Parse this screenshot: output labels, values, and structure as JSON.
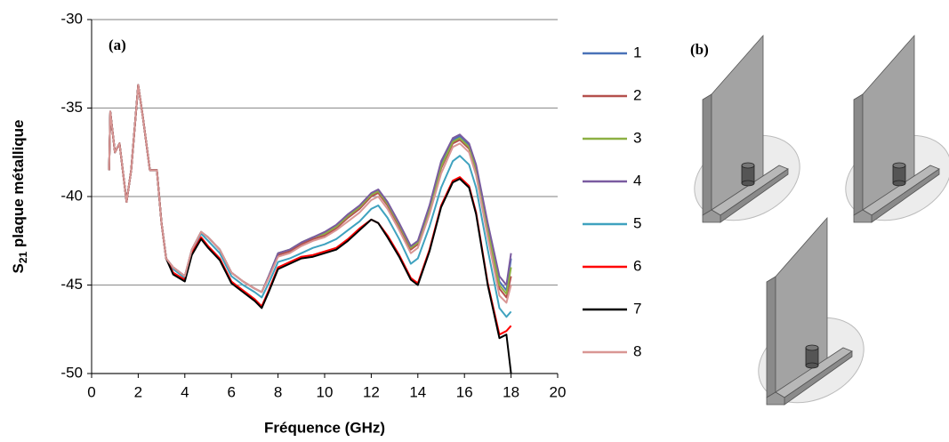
{
  "chart_data": {
    "type": "line",
    "xlabel": "Fréquence (GHz)",
    "ylabel": [
      "S",
      "21",
      " plaque  métallique"
    ],
    "annotation": "(a)",
    "xlim": [
      0,
      20
    ],
    "xticks": [
      0,
      2,
      4,
      6,
      8,
      10,
      12,
      14,
      16,
      18,
      20
    ],
    "ylim": [
      -50,
      -30
    ],
    "yticks": [
      -50,
      -45,
      -40,
      -35,
      -30
    ],
    "grid": true,
    "legend": "right",
    "x": [
      0.75,
      0.8,
      1.0,
      1.2,
      1.5,
      1.7,
      2.0,
      2.2,
      2.5,
      2.8,
      3.0,
      3.2,
      3.5,
      4.0,
      4.3,
      4.7,
      5.0,
      5.5,
      6.0,
      6.5,
      7.0,
      7.3,
      7.6,
      8.0,
      8.5,
      9.0,
      9.5,
      10.0,
      10.5,
      11.0,
      11.5,
      12.0,
      12.3,
      12.7,
      13.2,
      13.7,
      14.0,
      14.5,
      15.0,
      15.5,
      15.8,
      16.2,
      16.5,
      17.0,
      17.5,
      17.8,
      18.0
    ],
    "series": [
      {
        "name": "1",
        "color": "#4a72b8",
        "values": [
          -38.5,
          -35.2,
          -37.5,
          -37.0,
          -40.3,
          -38.5,
          -33.7,
          -35.5,
          -38.5,
          -38.5,
          -41.5,
          -43.5,
          -44.0,
          -44.5,
          -43.0,
          -42.0,
          -42.3,
          -43.0,
          -44.3,
          -44.8,
          -45.2,
          -45.4,
          -44.5,
          -43.2,
          -43.0,
          -42.6,
          -42.3,
          -42.1,
          -41.7,
          -41.1,
          -40.6,
          -39.9,
          -39.7,
          -40.4,
          -41.6,
          -42.9,
          -42.6,
          -40.6,
          -38.1,
          -36.8,
          -36.6,
          -37.1,
          -38.3,
          -41.7,
          -44.8,
          -45.3,
          -43.5
        ]
      },
      {
        "name": "2",
        "color": "#b4504c",
        "values": [
          -38.5,
          -35.2,
          -37.5,
          -37.0,
          -40.3,
          -38.5,
          -33.7,
          -35.5,
          -38.5,
          -38.5,
          -41.5,
          -43.5,
          -44.0,
          -44.5,
          -43.0,
          -42.0,
          -42.3,
          -43.0,
          -44.3,
          -44.8,
          -45.2,
          -45.4,
          -44.5,
          -43.3,
          -43.1,
          -42.7,
          -42.4,
          -42.2,
          -41.8,
          -41.2,
          -40.7,
          -40.0,
          -39.8,
          -40.5,
          -41.7,
          -43.0,
          -42.7,
          -40.8,
          -38.4,
          -37.0,
          -36.8,
          -37.3,
          -38.5,
          -42.0,
          -45.2,
          -45.7,
          -44.5
        ]
      },
      {
        "name": "3",
        "color": "#8cb043",
        "values": [
          -38.5,
          -35.2,
          -37.5,
          -37.0,
          -40.3,
          -38.5,
          -33.7,
          -35.5,
          -38.5,
          -38.5,
          -41.5,
          -43.5,
          -44.0,
          -44.5,
          -43.0,
          -42.0,
          -42.3,
          -43.0,
          -44.3,
          -44.8,
          -45.2,
          -45.4,
          -44.5,
          -43.2,
          -43.0,
          -42.6,
          -42.3,
          -42.1,
          -41.7,
          -41.1,
          -40.6,
          -39.9,
          -39.7,
          -40.4,
          -41.6,
          -42.9,
          -42.6,
          -40.7,
          -38.3,
          -36.9,
          -36.7,
          -37.2,
          -38.4,
          -41.8,
          -45.0,
          -45.5,
          -44.0
        ]
      },
      {
        "name": "4",
        "color": "#7a5ba0",
        "values": [
          -38.5,
          -35.2,
          -37.5,
          -37.0,
          -40.3,
          -38.5,
          -33.7,
          -35.5,
          -38.5,
          -38.5,
          -41.5,
          -43.5,
          -44.0,
          -44.5,
          -43.0,
          -42.0,
          -42.3,
          -43.0,
          -44.3,
          -44.8,
          -45.2,
          -45.4,
          -44.5,
          -43.2,
          -43.0,
          -42.6,
          -42.3,
          -42.0,
          -41.6,
          -41.0,
          -40.5,
          -39.8,
          -39.6,
          -40.3,
          -41.5,
          -42.8,
          -42.5,
          -40.5,
          -38.0,
          -36.7,
          -36.5,
          -37.0,
          -38.2,
          -41.5,
          -44.5,
          -45.0,
          -43.2
        ]
      },
      {
        "name": "5",
        "color": "#3fa2bf",
        "values": [
          -38.5,
          -35.2,
          -37.5,
          -37.0,
          -40.3,
          -38.5,
          -33.7,
          -35.5,
          -38.5,
          -38.5,
          -41.5,
          -43.5,
          -44.1,
          -44.6,
          -43.1,
          -42.1,
          -42.5,
          -43.2,
          -44.5,
          -45.0,
          -45.4,
          -45.7,
          -44.9,
          -43.7,
          -43.5,
          -43.2,
          -42.9,
          -42.7,
          -42.4,
          -41.9,
          -41.4,
          -40.7,
          -40.5,
          -41.2,
          -42.4,
          -43.8,
          -43.5,
          -41.7,
          -39.5,
          -38.0,
          -37.7,
          -38.2,
          -39.5,
          -43.0,
          -46.3,
          -46.8,
          -46.5
        ]
      },
      {
        "name": "6",
        "color": "#ff0000",
        "values": [
          -38.5,
          -35.2,
          -37.5,
          -37.0,
          -40.3,
          -38.5,
          -33.7,
          -35.5,
          -38.5,
          -38.5,
          -41.5,
          -43.5,
          -44.3,
          -44.7,
          -43.2,
          -42.3,
          -42.8,
          -43.5,
          -44.8,
          -45.3,
          -45.8,
          -46.2,
          -45.3,
          -44.0,
          -43.7,
          -43.4,
          -43.3,
          -43.1,
          -42.9,
          -42.4,
          -41.8,
          -41.3,
          -41.5,
          -42.2,
          -43.3,
          -44.6,
          -44.9,
          -43.0,
          -40.5,
          -39.1,
          -38.9,
          -39.4,
          -40.9,
          -44.9,
          -47.8,
          -47.6,
          -47.3
        ]
      },
      {
        "name": "7",
        "color": "#000000",
        "values": [
          -38.5,
          -35.2,
          -37.5,
          -37.0,
          -40.3,
          -38.5,
          -33.7,
          -35.5,
          -38.5,
          -38.5,
          -41.5,
          -43.5,
          -44.4,
          -44.8,
          -43.3,
          -42.4,
          -42.9,
          -43.6,
          -44.9,
          -45.4,
          -45.9,
          -46.3,
          -45.4,
          -44.1,
          -43.8,
          -43.5,
          -43.4,
          -43.2,
          -43.0,
          -42.5,
          -41.9,
          -41.3,
          -41.5,
          -42.3,
          -43.4,
          -44.7,
          -45.0,
          -43.1,
          -40.6,
          -39.2,
          -39.0,
          -39.5,
          -41.0,
          -45.0,
          -48.0,
          -47.8,
          -50.0
        ]
      },
      {
        "name": "8",
        "color": "#d99694",
        "values": [
          -38.5,
          -35.2,
          -37.5,
          -37.0,
          -40.3,
          -38.5,
          -33.7,
          -35.5,
          -38.5,
          -38.5,
          -41.5,
          -43.5,
          -44.0,
          -44.5,
          -43.0,
          -42.0,
          -42.3,
          -43.0,
          -44.3,
          -44.8,
          -45.2,
          -45.4,
          -44.6,
          -43.4,
          -43.2,
          -42.8,
          -42.5,
          -42.3,
          -41.9,
          -41.4,
          -40.9,
          -40.2,
          -40.0,
          -40.7,
          -41.9,
          -43.2,
          -42.9,
          -41.0,
          -38.7,
          -37.2,
          -37.0,
          -37.5,
          -38.8,
          -42.3,
          -45.6,
          -46.0,
          -45.0
        ]
      }
    ]
  },
  "diagram": {
    "label": "(b)"
  }
}
